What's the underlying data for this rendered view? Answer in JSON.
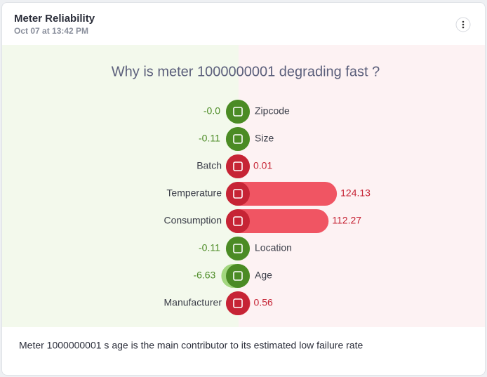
{
  "header": {
    "title": "Meter Reliability",
    "subtitle": "Oct 07 at 13:42 PM"
  },
  "chart_data": {
    "type": "diverging-bar",
    "title": "Why is meter 1000000001 degrading fast ?",
    "categories": [
      "Zipcode",
      "Size",
      "Batch",
      "Temperature",
      "Consumption",
      "Location",
      "Age",
      "Manufacturer"
    ],
    "values": [
      0,
      -0.11,
      0.01,
      124.13,
      112.27,
      -0.11,
      -6.63,
      0.56
    ],
    "value_labels": [
      "-0.0",
      "-0.11",
      "0.01",
      "124.13",
      "112.27",
      "-0.11",
      "-6.63",
      "0.56"
    ],
    "negative_color": "#a3d77f",
    "negative_icon_color": "#4b8b25",
    "negative_text_color": "#4b8b25",
    "positive_color": "#f05563",
    "positive_icon_color": "#c62435",
    "positive_text_color": "#c62435"
  },
  "footer": {
    "text": "Meter 1000000001 s age is the main contributor to its estimated low failure rate"
  }
}
